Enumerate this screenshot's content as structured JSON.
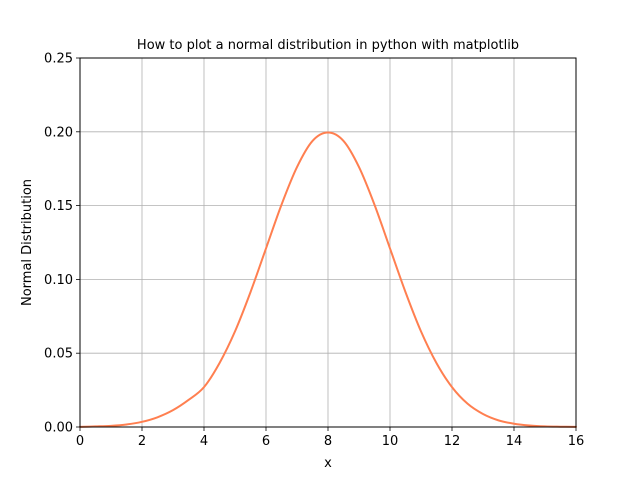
{
  "chart_data": {
    "type": "line",
    "title": "How to plot a normal distribution in python with matplotlib",
    "xlabel": "x",
    "ylabel": "Normal Distribution",
    "xlim": [
      0,
      16
    ],
    "ylim": [
      0,
      0.25
    ],
    "x_ticks": [
      0,
      2,
      4,
      6,
      8,
      10,
      12,
      14,
      16
    ],
    "x_tick_labels": [
      "0",
      "2",
      "4",
      "6",
      "8",
      "10",
      "12",
      "14",
      "16"
    ],
    "y_ticks": [
      0,
      0.05,
      0.1,
      0.15,
      0.2,
      0.25
    ],
    "y_tick_labels": [
      "0.00",
      "0.05",
      "0.10",
      "0.15",
      "0.20",
      "0.25"
    ],
    "grid": true,
    "legend": "none",
    "series": [
      {
        "color": "#ff7f50",
        "x": [
          0,
          0.5,
          1,
          1.5,
          2,
          2.5,
          3,
          3.5,
          4,
          4.5,
          5,
          5.5,
          6,
          6.5,
          7,
          7.5,
          8,
          8.5,
          9,
          9.5,
          10,
          10.5,
          11,
          11.5,
          12,
          12.5,
          13,
          13.5,
          14,
          14.5,
          15,
          15.5,
          16
        ],
        "y": [
          0.0001,
          0.0004,
          0.0008,
          0.0017,
          0.0035,
          0.0066,
          0.0114,
          0.0183,
          0.027,
          0.0433,
          0.0648,
          0.0914,
          0.121,
          0.1506,
          0.1761,
          0.1938,
          0.1995,
          0.1938,
          0.1761,
          0.1506,
          0.121,
          0.0914,
          0.0648,
          0.0433,
          0.027,
          0.0158,
          0.0088,
          0.0045,
          0.0022,
          0.001,
          0.0004,
          0.0002,
          0.0001
        ]
      }
    ]
  }
}
